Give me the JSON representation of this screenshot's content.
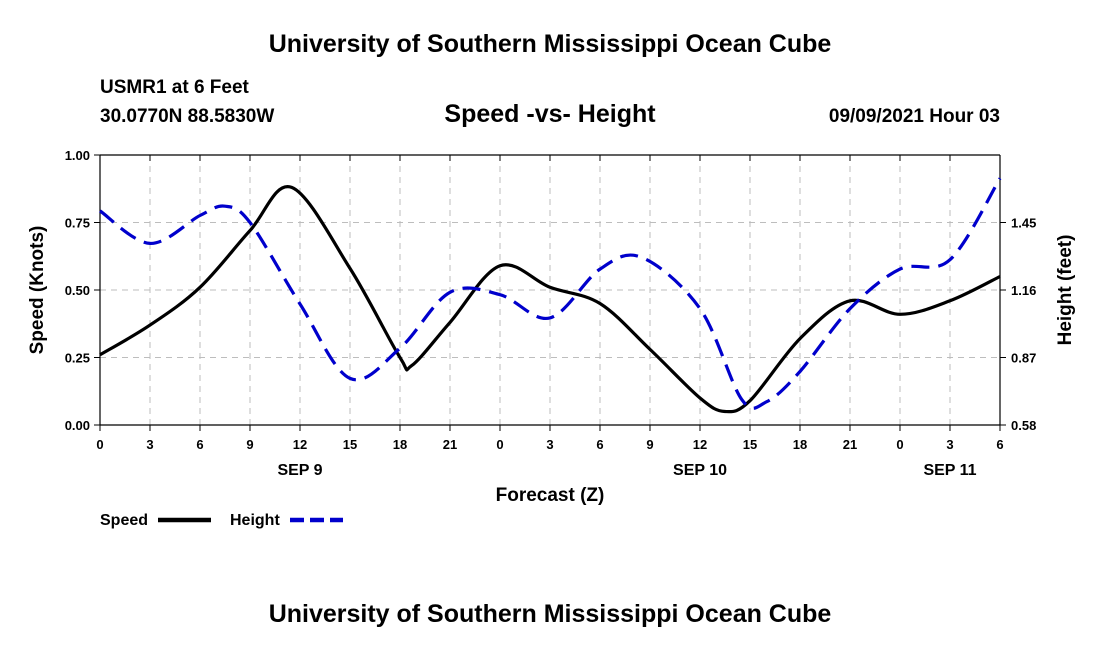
{
  "page": {
    "title": "University of Southern Mississippi Ocean Cube",
    "footer_title": "University of Southern Mississippi Ocean Cube",
    "station": "USMR1 at 6 Feet",
    "coordinates": "30.0770N  88.5830W",
    "subtitle": "Speed -vs- Height",
    "datetime": "09/09/2021 Hour 03"
  },
  "chart_data": {
    "type": "line",
    "title": "Speed -vs- Height",
    "xlabel": "Forecast (Z)",
    "ylabel": "Speed (Knots)",
    "ylabel_right": "Height (feet)",
    "x_range": [
      0,
      54
    ],
    "x_unit": "forecast hours from 00Z SEP 9",
    "ylim": [
      0,
      1
    ],
    "ylim_right": [
      0.58,
      1.74
    ],
    "x_ticks": [
      {
        "x": 0,
        "label": "0"
      },
      {
        "x": 3,
        "label": "3"
      },
      {
        "x": 6,
        "label": "6"
      },
      {
        "x": 9,
        "label": "9"
      },
      {
        "x": 12,
        "label": "12"
      },
      {
        "x": 15,
        "label": "15"
      },
      {
        "x": 18,
        "label": "18"
      },
      {
        "x": 21,
        "label": "21"
      },
      {
        "x": 24,
        "label": "0"
      },
      {
        "x": 27,
        "label": "3"
      },
      {
        "x": 30,
        "label": "6"
      },
      {
        "x": 33,
        "label": "9"
      },
      {
        "x": 36,
        "label": "12"
      },
      {
        "x": 39,
        "label": "15"
      },
      {
        "x": 42,
        "label": "18"
      },
      {
        "x": 45,
        "label": "21"
      },
      {
        "x": 48,
        "label": "0"
      },
      {
        "x": 51,
        "label": "3"
      },
      {
        "x": 54,
        "label": "6"
      }
    ],
    "date_labels": [
      {
        "x": 12,
        "label": "SEP 9"
      },
      {
        "x": 36,
        "label": "SEP 10"
      },
      {
        "x": 51,
        "label": "SEP 11"
      }
    ],
    "y_ticks_left": [
      {
        "v": 0,
        "label": "0.00"
      },
      {
        "v": 0.25,
        "label": "0.25"
      },
      {
        "v": 0.5,
        "label": "0.50"
      },
      {
        "v": 0.75,
        "label": "0.75"
      },
      {
        "v": 1,
        "label": "1.00"
      }
    ],
    "y_ticks_right": [
      {
        "v": 0.58,
        "label": "0.58"
      },
      {
        "v": 0.87,
        "label": "0.87"
      },
      {
        "v": 1.16,
        "label": "1.16"
      },
      {
        "v": 1.45,
        "label": "1.45"
      }
    ],
    "legend": [
      {
        "name": "Speed",
        "color": "#000000",
        "dash": "solid"
      },
      {
        "name": "Height",
        "color": "#0000cc",
        "dash": "dashed"
      }
    ],
    "series": [
      {
        "name": "Speed",
        "axis": "left",
        "color": "#000000",
        "x": [
          0,
          3,
          6,
          9,
          11.5,
          15,
          18,
          18.7,
          21,
          24,
          27,
          30,
          33,
          36,
          37.5,
          39,
          42,
          45,
          48,
          51,
          54
        ],
        "values": [
          0.26,
          0.37,
          0.51,
          0.72,
          0.88,
          0.58,
          0.25,
          0.22,
          0.38,
          0.59,
          0.51,
          0.45,
          0.28,
          0.1,
          0.05,
          0.09,
          0.32,
          0.46,
          0.41,
          0.46,
          0.55
        ]
      },
      {
        "name": "Height",
        "axis": "right",
        "color": "#0000cc",
        "x": [
          0,
          3,
          6,
          7.5,
          9,
          12,
          15,
          18,
          21,
          24,
          27,
          30,
          32.5,
          36,
          38.5,
          40,
          42,
          45,
          48,
          51,
          54
        ],
        "values": [
          1.5,
          1.36,
          1.48,
          1.52,
          1.45,
          1.1,
          0.78,
          0.91,
          1.15,
          1.14,
          1.04,
          1.25,
          1.3,
          1.08,
          0.69,
          0.68,
          0.81,
          1.08,
          1.25,
          1.29,
          1.64
        ]
      }
    ]
  }
}
